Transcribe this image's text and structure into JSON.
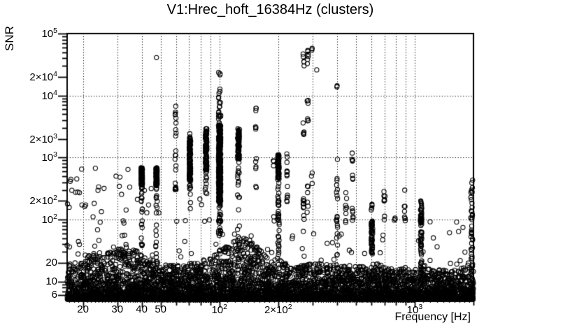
{
  "chart_data": {
    "type": "scatter",
    "title": "V1:Hrec_hoft_16384Hz (clusters)",
    "xlabel": "Frequency [Hz]",
    "ylabel": "SNR",
    "xscale": "log",
    "yscale": "log",
    "xlim": [
      16.6,
      2000
    ],
    "ylim": [
      5.2,
      100000
    ],
    "grid": "dotted",
    "legend": "none",
    "marker": {
      "shape": "open-circle",
      "radius": 3.1,
      "color": "#000000"
    },
    "x_ticks": [
      {
        "v": 20,
        "text": "20",
        "sup": ""
      },
      {
        "v": 30,
        "text": "30",
        "sup": ""
      },
      {
        "v": 40,
        "text": "40",
        "sup": ""
      },
      {
        "v": 50,
        "text": "50",
        "sup": ""
      },
      {
        "v": 100,
        "text": "10",
        "sup": "2"
      },
      {
        "v": 200,
        "text": "2×10",
        "sup": "2"
      },
      {
        "v": 1000,
        "text": "10",
        "sup": "3"
      }
    ],
    "y_ticks": [
      {
        "v": 100000,
        "text": "10",
        "sup": "5"
      },
      {
        "v": 20000,
        "text": "2×10",
        "sup": "4"
      },
      {
        "v": 10000,
        "text": "10",
        "sup": "4"
      },
      {
        "v": 2000,
        "text": "2×10",
        "sup": "3"
      },
      {
        "v": 1000,
        "text": "10",
        "sup": "3"
      },
      {
        "v": 200,
        "text": "2×10",
        "sup": "2"
      },
      {
        "v": 100,
        "text": "10",
        "sup": "2"
      },
      {
        "v": 20,
        "text": "20",
        "sup": ""
      },
      {
        "v": 10,
        "text": "10",
        "sup": ""
      },
      {
        "v": 6,
        "text": "6",
        "sup": ""
      }
    ],
    "background_band": {
      "count": 6500,
      "snr_floor": 5.2,
      "tail_exponent": 3.2,
      "tail_overshoot": 1.55,
      "envelope": [
        [
          16.6,
          13
        ],
        [
          20,
          16
        ],
        [
          24,
          19
        ],
        [
          28,
          21
        ],
        [
          33,
          22
        ],
        [
          38,
          21
        ],
        [
          44,
          16
        ],
        [
          52,
          12
        ],
        [
          62,
          12
        ],
        [
          75,
          13
        ],
        [
          90,
          16
        ],
        [
          100,
          22
        ],
        [
          112,
          28
        ],
        [
          125,
          32
        ],
        [
          140,
          32
        ],
        [
          155,
          25
        ],
        [
          170,
          18
        ],
        [
          185,
          14
        ],
        [
          200,
          16
        ],
        [
          230,
          11
        ],
        [
          270,
          12
        ],
        [
          320,
          13
        ],
        [
          380,
          12
        ],
        [
          450,
          12
        ],
        [
          520,
          11
        ],
        [
          604,
          14
        ],
        [
          700,
          11
        ],
        [
          800,
          10
        ],
        [
          900,
          11
        ],
        [
          1000,
          11
        ],
        [
          1078,
          13
        ],
        [
          1200,
          10
        ],
        [
          1400,
          10
        ],
        [
          1600,
          10
        ],
        [
          1800,
          11
        ],
        [
          1930,
          14
        ],
        [
          2000,
          18
        ]
      ]
    },
    "scatter_clouds": [
      {
        "fmin": 16.6,
        "fmax": 36,
        "smin": 25,
        "smax": 700,
        "n": 50
      },
      {
        "fmin": 36,
        "fmax": 95,
        "smin": 25,
        "smax": 420,
        "n": 20
      },
      {
        "fmin": 95,
        "fmax": 180,
        "smin": 30,
        "smax": 90,
        "n": 10
      },
      {
        "fmin": 180,
        "fmax": 400,
        "smin": 15,
        "smax": 70,
        "n": 12
      },
      {
        "fmin": 400,
        "fmax": 1000,
        "smin": 15,
        "smax": 60,
        "n": 14
      },
      {
        "fmin": 1000,
        "fmax": 1900,
        "smin": 11,
        "smax": 95,
        "n": 26
      }
    ],
    "spectral_lines": [
      {
        "f": 40.0,
        "jitter": 0.004,
        "segments": [
          [
            360,
            690,
            170
          ],
          [
            110,
            360,
            12
          ],
          [
            24,
            110,
            10
          ]
        ]
      },
      {
        "f": 47.6,
        "jitter": 0.004,
        "segments": [
          [
            360,
            690,
            170
          ],
          [
            110,
            360,
            10
          ],
          [
            24,
            110,
            8
          ]
        ]
      },
      {
        "f": 59.6,
        "jitter": 0.003,
        "segments": [
          [
            300,
            340,
            8
          ],
          [
            340,
            7000,
            16
          ]
        ]
      },
      {
        "f": 70.6,
        "jitter": 0.004,
        "segments": [
          [
            430,
            2050,
            120
          ],
          [
            150,
            430,
            9
          ],
          [
            2050,
            2450,
            3
          ]
        ]
      },
      {
        "f": 85.5,
        "jitter": 0.004,
        "segments": [
          [
            650,
            2700,
            100
          ],
          [
            210,
            650,
            11
          ],
          [
            2700,
            3200,
            3
          ]
        ]
      },
      {
        "f": 100.2,
        "jitter": 0.006,
        "segments": [
          [
            195,
            3400,
            400
          ],
          [
            58,
            195,
            28
          ],
          [
            3400,
            6800,
            13
          ],
          [
            7600,
            13500,
            7
          ],
          [
            20500,
            24000,
            3
          ]
        ]
      },
      {
        "f": 125.2,
        "jitter": 0.005,
        "segments": [
          [
            930,
            3000,
            85
          ],
          [
            360,
            930,
            11
          ],
          [
            45,
            360,
            9
          ]
        ]
      },
      {
        "f": 154,
        "jitter": 0.003,
        "segments": [
          [
            5400,
            6300,
            3
          ],
          [
            2700,
            3200,
            3
          ],
          [
            660,
            1000,
            4
          ],
          [
            280,
            350,
            2
          ]
        ]
      },
      {
        "f": 190,
        "jitter": 0.003,
        "segments": [
          [
            620,
            900,
            3
          ],
          [
            90,
            130,
            2
          ]
        ]
      },
      {
        "f": 200.5,
        "jitter": 0.004,
        "segments": [
          [
            430,
            1150,
            65
          ],
          [
            95,
            430,
            20
          ],
          [
            26,
            95,
            14
          ]
        ]
      },
      {
        "f": 222,
        "jitter": 0.003,
        "segments": [
          [
            490,
            1150,
            9
          ],
          [
            180,
            430,
            6
          ]
        ]
      },
      {
        "f": 270,
        "jitter": 0.003,
        "segments": [
          [
            29000,
            49000,
            5
          ],
          [
            2100,
            4300,
            5
          ],
          [
            58,
            230,
            13
          ]
        ]
      },
      {
        "f": 283,
        "jitter": 0.003,
        "segments": [
          [
            31000,
            56000,
            6
          ],
          [
            2100,
            9000,
            7
          ],
          [
            100,
            420,
            6
          ]
        ]
      },
      {
        "f": 297,
        "jitter": 0.003,
        "segments": [
          [
            52000,
            59000,
            3
          ],
          [
            310,
            620,
            3
          ]
        ]
      },
      {
        "f": 400,
        "jitter": 0.003,
        "segments": [
          [
            11500,
            14500,
            2
          ],
          [
            100,
            1100,
            11
          ],
          [
            26,
            100,
            9
          ]
        ]
      },
      {
        "f": 445,
        "jitter": 0.003,
        "segments": [
          [
            60,
            360,
            8
          ]
        ]
      },
      {
        "f": 481,
        "jitter": 0.003,
        "segments": [
          [
            870,
            1350,
            4
          ],
          [
            430,
            620,
            3
          ],
          [
            90,
            165,
            6
          ]
        ]
      },
      {
        "f": 604,
        "jitter": 0.004,
        "segments": [
          [
            28,
            95,
            55
          ],
          [
            100,
            200,
            6
          ]
        ]
      },
      {
        "f": 700,
        "jitter": 0.003,
        "segments": [
          [
            90,
            360,
            8
          ]
        ]
      },
      {
        "f": 790,
        "jitter": 0.003,
        "segments": [
          [
            95,
            135,
            3
          ]
        ]
      },
      {
        "f": 890,
        "jitter": 0.003,
        "segments": [
          [
            95,
            330,
            7
          ]
        ]
      },
      {
        "f": 1078,
        "jitter": 0.004,
        "segments": [
          [
            9,
            200,
            70
          ],
          [
            85,
            110,
            5
          ]
        ]
      },
      {
        "f": 1960,
        "jitter": 0.005,
        "segments": [
          [
            12,
            470,
            40
          ]
        ]
      }
    ],
    "outliers": [
      [
        47.6,
        41000
      ],
      [
        315,
        26000
      ]
    ],
    "colors": {
      "foreground": "#000000",
      "background": "#ffffff"
    }
  }
}
